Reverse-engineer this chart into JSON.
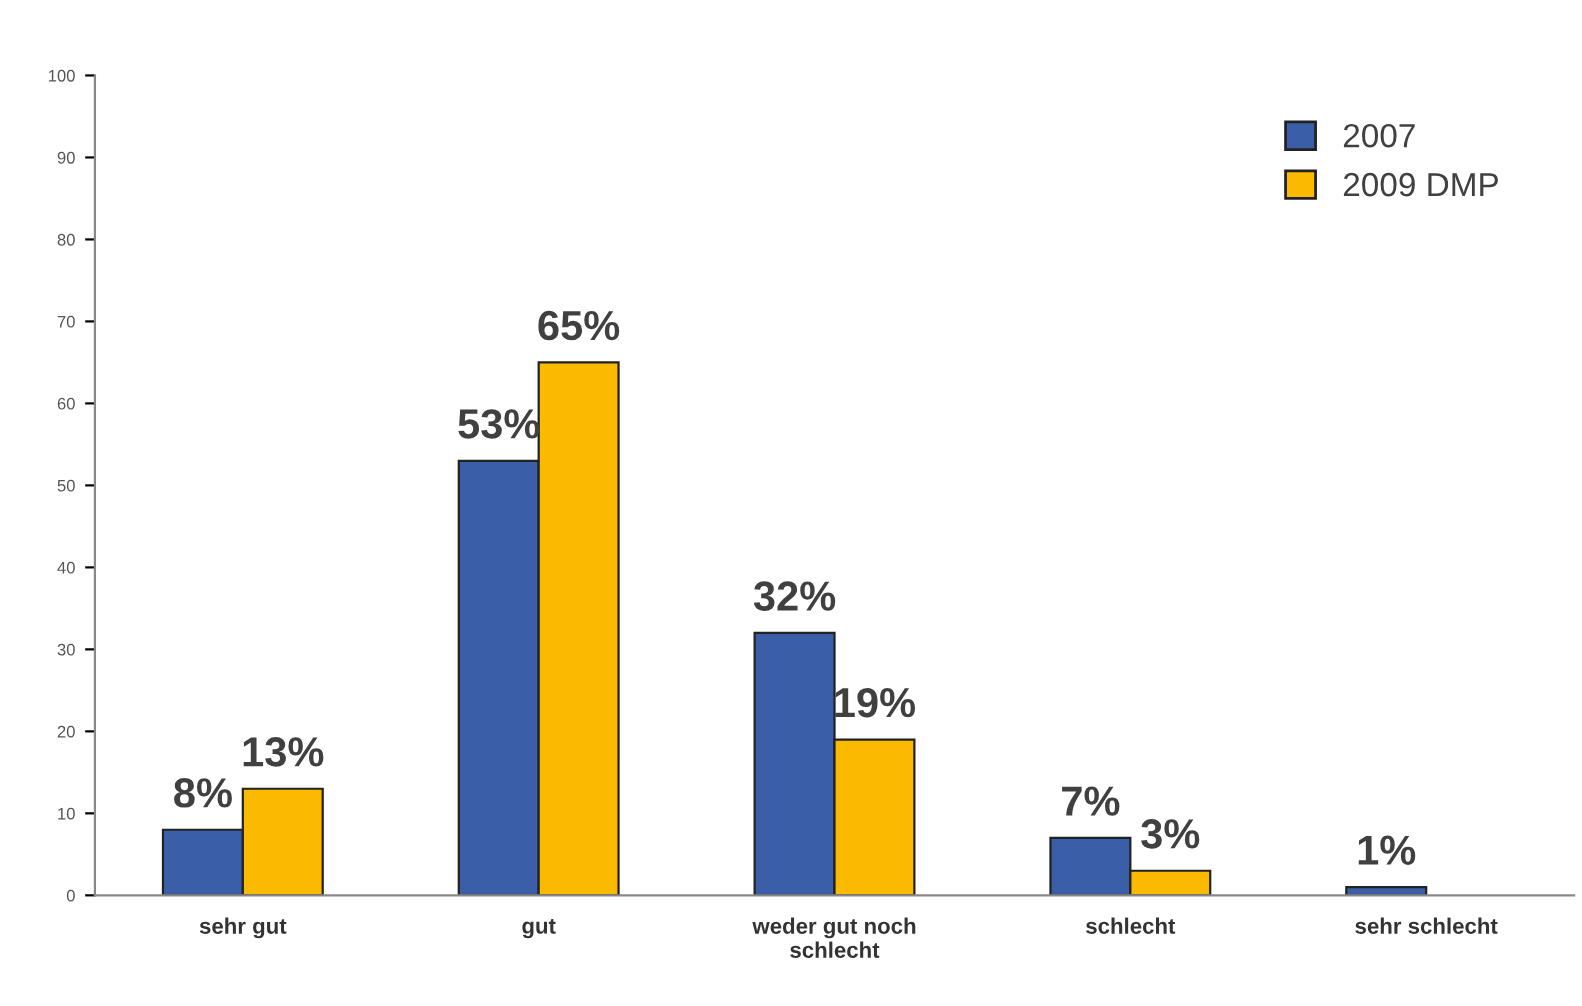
{
  "chart_data": {
    "type": "bar",
    "categories": [
      "sehr gut",
      "gut",
      "weder gut noch\nschlecht",
      "schlecht",
      "sehr schlecht"
    ],
    "series": [
      {
        "name": "2007",
        "color": "#3a5fa8",
        "values": [
          8,
          53,
          32,
          7,
          1
        ],
        "value_labels": [
          "8%",
          "53%",
          "32%",
          "7%",
          "1%"
        ]
      },
      {
        "name": "2009 DMP",
        "color": "#fbb900",
        "values": [
          13,
          65,
          19,
          3,
          null
        ],
        "value_labels": [
          "13%",
          "65%",
          "19%",
          "3%",
          null
        ]
      }
    ],
    "ylim": [
      0,
      100
    ],
    "yticks": [
      0,
      10,
      20,
      30,
      40,
      50,
      60,
      70,
      80,
      90,
      100
    ],
    "grid": false,
    "legend": "top right"
  }
}
